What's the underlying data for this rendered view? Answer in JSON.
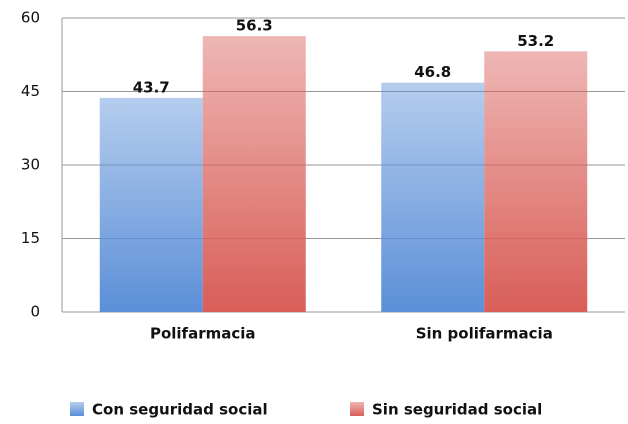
{
  "chart_data": {
    "type": "bar",
    "categories": [
      "Polifarmacia",
      "Sin polifarmacia"
    ],
    "series": [
      {
        "name": "Con seguridad social",
        "color": "#5b8fd8",
        "values": [
          43.7,
          46.8
        ]
      },
      {
        "name": "Sin seguridad social",
        "color": "#d95e58",
        "values": [
          56.3,
          53.2
        ]
      }
    ],
    "ylim": [
      0,
      60
    ],
    "yticks": [
      0,
      15,
      30,
      45,
      60
    ],
    "grid": true,
    "legend": "bottom"
  }
}
